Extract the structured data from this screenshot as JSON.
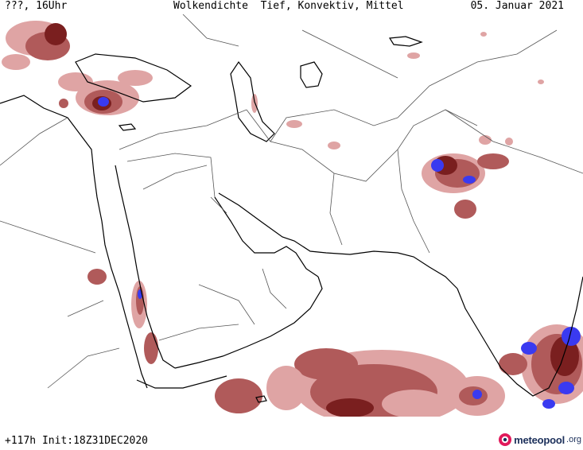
{
  "header": {
    "left": "???, 16Uhr",
    "title": "Wolkendichte  Tief, Konvektiv, Mittel",
    "date": "05. Januar 2021"
  },
  "footer": {
    "run_info": "+117h Init:18Z31DEC2020",
    "logo_name": "meteopool",
    "logo_tld": ".org"
  },
  "map": {
    "region": "Naher Osten / Arabische Halbinsel / Indien",
    "colors": {
      "cloud_light": "#dfa4a4",
      "cloud_medium": "#b05a5a",
      "cloud_dense": "#7a1f1f",
      "convective": "#3a3af0",
      "coastline": "#000000",
      "border": "#555555",
      "background": "#ffffff"
    }
  }
}
